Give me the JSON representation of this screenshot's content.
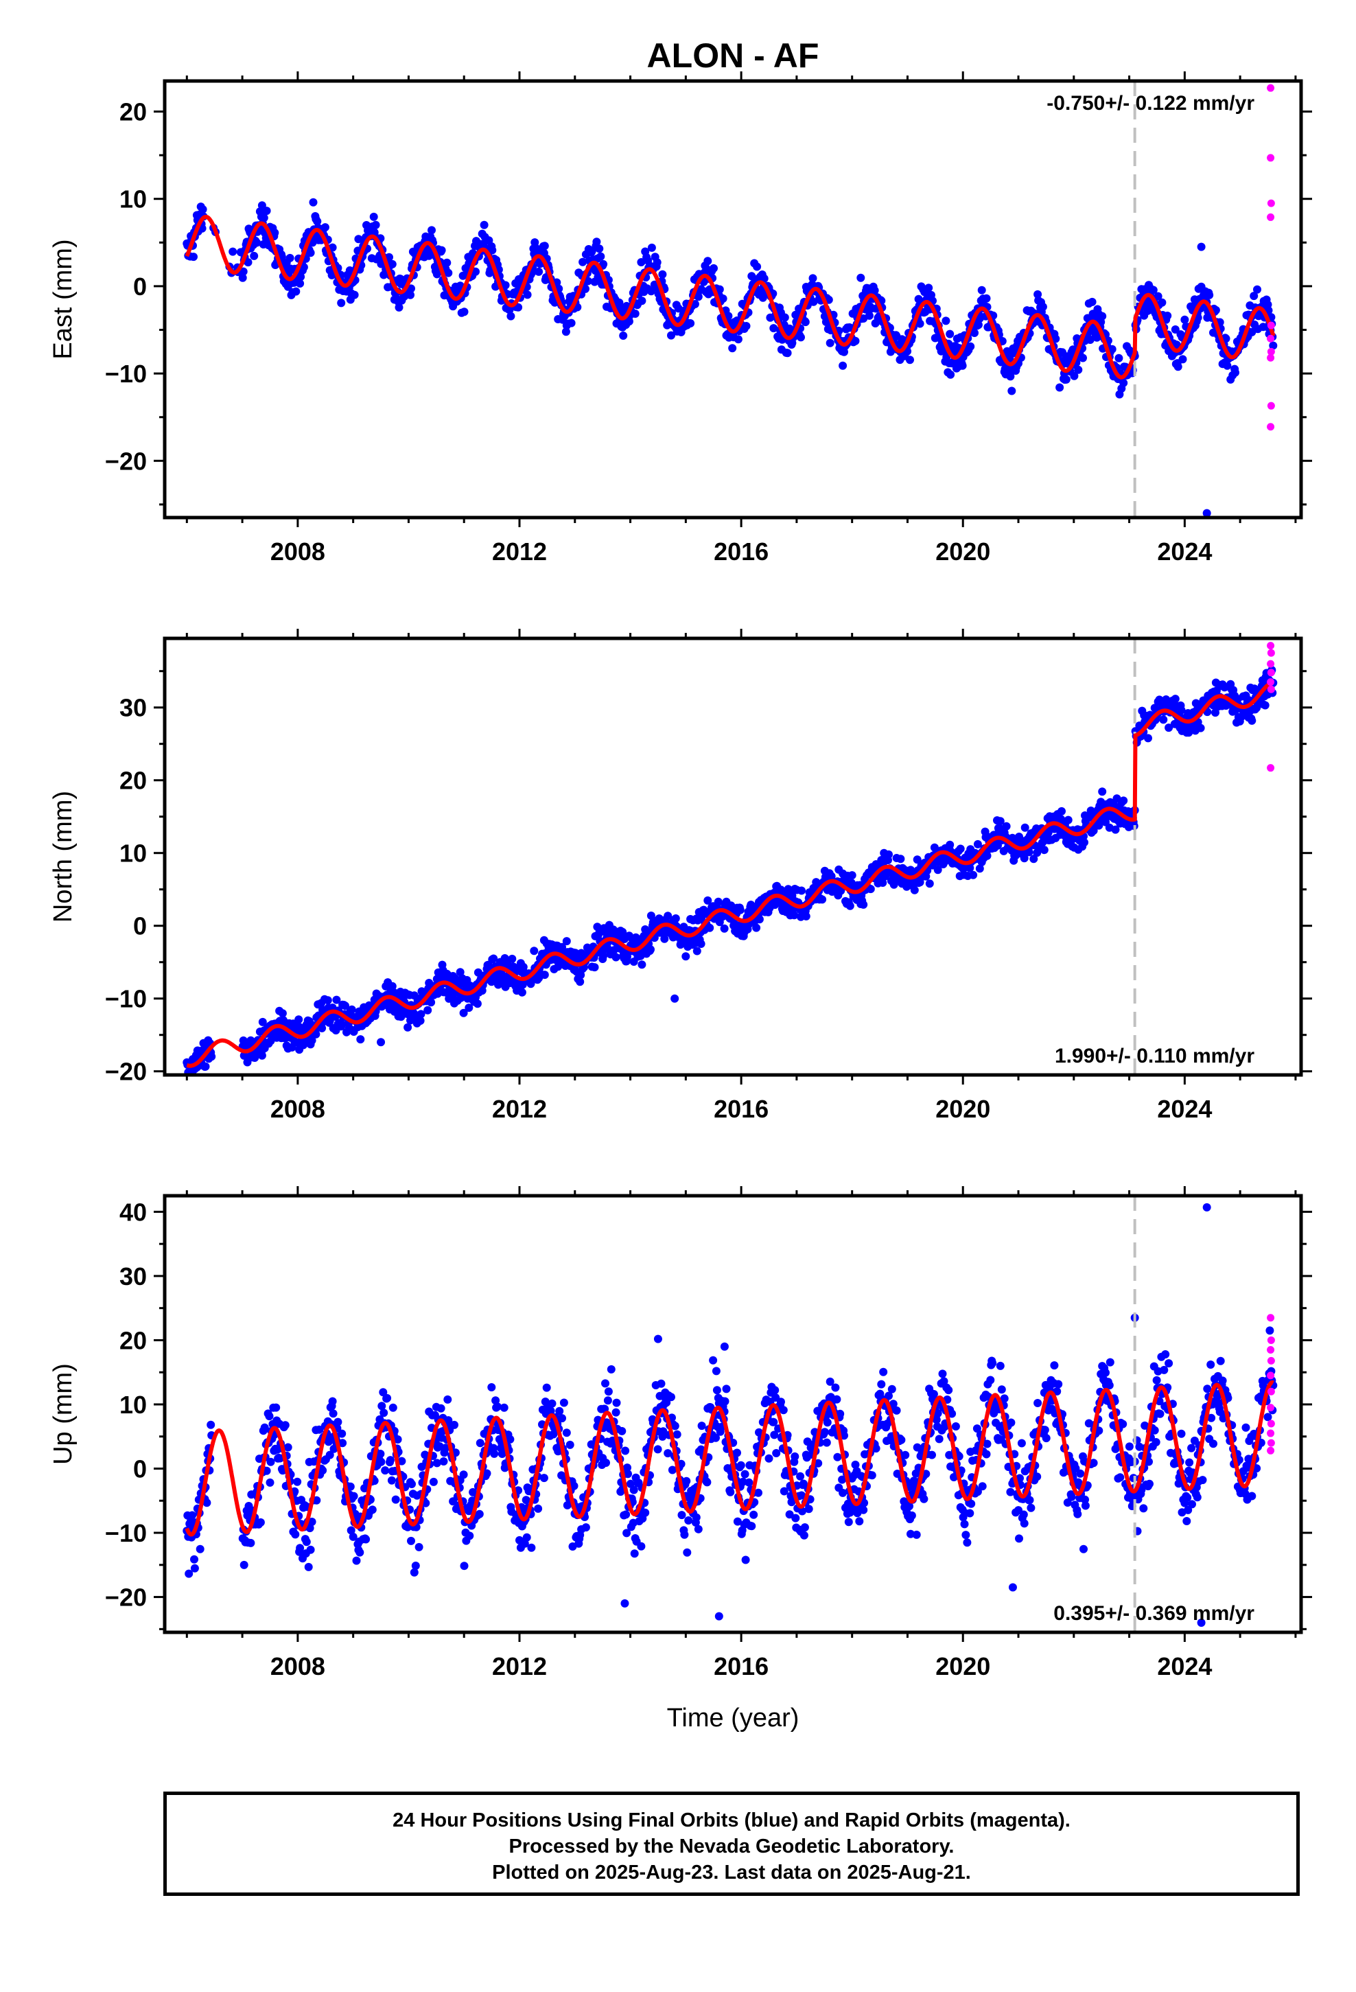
{
  "title": "ALON - AF",
  "xlabel": "Time (year)",
  "footer": [
    "24 Hour Positions Using Final Orbits (blue) and Rapid Orbits (magenta).",
    "Processed by the Nevada Geodetic Laboratory.",
    "Plotted on 2025-Aug-23. Last data on 2025-Aug-21."
  ],
  "colors": {
    "final": "#0000ff",
    "rapid": "#ff00ff",
    "model": "#ff0000",
    "step_line": "#c0c0c0"
  },
  "chart_data": [
    {
      "type": "scatter",
      "component": "East",
      "ylabel": "East (mm)",
      "rate": "-0.750+/- 0.122 mm/yr",
      "rate_position": "top-right",
      "xlim": [
        2005.6,
        2026.1
      ],
      "ylim": [
        -26.5,
        23.5
      ],
      "xticks": [
        2008,
        2012,
        2016,
        2020,
        2024
      ],
      "yticks": [
        -20,
        -10,
        0,
        10,
        20
      ],
      "step_epoch": 2023.1,
      "model": {
        "offset": 5.2,
        "trend_mm_per_yr": -0.75,
        "annual_amplitude": 3.0,
        "annual_phase_peak": 0.35,
        "step": 3.8,
        "data_start": 2006.0,
        "data_end": 2025.6
      },
      "outliers": [
        [
          2024.3,
          4.5
        ],
        [
          2024.4,
          -26.0
        ]
      ],
      "rapid_points": [
        [
          2025.55,
          22.7
        ],
        [
          2025.55,
          14.7
        ],
        [
          2025.56,
          9.5
        ],
        [
          2025.55,
          7.9
        ],
        [
          2025.56,
          -4.5
        ],
        [
          2025.55,
          -6.0
        ],
        [
          2025.56,
          -7.5
        ],
        [
          2025.55,
          -8.2
        ],
        [
          2025.56,
          -13.7
        ],
        [
          2025.55,
          -16.1
        ]
      ]
    },
    {
      "type": "scatter",
      "component": "North",
      "ylabel": "North (mm)",
      "rate": "1.990+/- 0.110 mm/yr",
      "rate_position": "bottom-right",
      "xlim": [
        2005.6,
        2026.1
      ],
      "ylim": [
        -20.5,
        39.5
      ],
      "xticks": [
        2008,
        2012,
        2016,
        2020,
        2024
      ],
      "yticks": [
        -20,
        -10,
        0,
        10,
        20,
        30
      ],
      "step_epoch": 2023.1,
      "model": {
        "offset": -18.2,
        "trend_mm_per_yr": 1.99,
        "annual_amplitude": 1.2,
        "annual_phase_peak": 0.6,
        "step": 11.5,
        "data_start": 2006.0,
        "data_end": 2025.6
      },
      "outliers": [
        [
          2009.5,
          -16.0
        ],
        [
          2014.8,
          -10.0
        ],
        [
          2019.4,
          5.8
        ]
      ],
      "rapid_points": [
        [
          2025.55,
          38.5
        ],
        [
          2025.56,
          37.5
        ],
        [
          2025.55,
          36.0
        ],
        [
          2025.56,
          34.8
        ],
        [
          2025.55,
          33.5
        ],
        [
          2025.56,
          32.5
        ],
        [
          2025.55,
          21.7
        ]
      ]
    },
    {
      "type": "scatter",
      "component": "Up",
      "ylabel": "Up (mm)",
      "rate": "0.395+/- 0.369 mm/yr",
      "rate_position": "bottom-right",
      "xlim": [
        2005.6,
        2026.1
      ],
      "ylim": [
        -25.5,
        42.5
      ],
      "xticks": [
        2008,
        2012,
        2016,
        2020,
        2024
      ],
      "yticks": [
        -20,
        -10,
        0,
        10,
        20,
        30,
        40
      ],
      "step_epoch": 2023.1,
      "model": {
        "offset": -2.3,
        "trend_mm_per_yr": 0.395,
        "annual_amplitude": 8.0,
        "annual_phase_peak": 0.58,
        "step": 0.0,
        "data_start": 2006.0,
        "data_end": 2025.6
      },
      "outliers": [
        [
          2024.4,
          40.7
        ],
        [
          2023.1,
          23.5
        ],
        [
          2013.9,
          -21.0
        ],
        [
          2015.6,
          -23.0
        ],
        [
          2020.9,
          -18.5
        ],
        [
          2024.3,
          -24.0
        ],
        [
          2014.5,
          20.2
        ],
        [
          2015.7,
          19.0
        ]
      ],
      "rapid_points": [
        [
          2025.55,
          23.5
        ],
        [
          2025.56,
          20.0
        ],
        [
          2025.55,
          18.5
        ],
        [
          2025.56,
          16.8
        ],
        [
          2025.55,
          14.5
        ],
        [
          2025.56,
          12.0
        ],
        [
          2025.55,
          9.5
        ],
        [
          2025.56,
          7.0
        ],
        [
          2025.55,
          5.5
        ],
        [
          2025.56,
          4.0
        ],
        [
          2025.55,
          2.8
        ]
      ]
    }
  ]
}
